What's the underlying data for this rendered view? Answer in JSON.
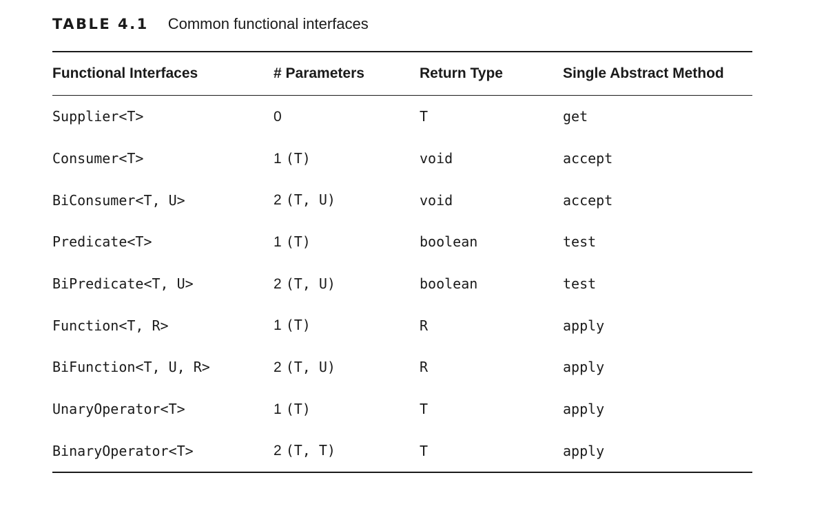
{
  "caption": {
    "label": "TABLE 4.1",
    "title": "Common functional interfaces"
  },
  "table": {
    "headers": [
      "Functional Interfaces",
      "# Parameters",
      "Return Type",
      "Single Abstract Method"
    ],
    "rows": [
      {
        "interface": "Supplier<T>",
        "param_count": "0",
        "param_types": "",
        "return_type": "T",
        "method": "get"
      },
      {
        "interface": "Consumer<T>",
        "param_count": "1",
        "param_types": "(T)",
        "return_type": "void",
        "method": "accept"
      },
      {
        "interface": "BiConsumer<T, U>",
        "param_count": "2",
        "param_types": "(T, U)",
        "return_type": "void",
        "method": "accept"
      },
      {
        "interface": "Predicate<T>",
        "param_count": "1",
        "param_types": "(T)",
        "return_type": "boolean",
        "method": "test"
      },
      {
        "interface": "BiPredicate<T, U>",
        "param_count": "2",
        "param_types": "(T, U)",
        "return_type": "boolean",
        "method": "test"
      },
      {
        "interface": "Function<T, R>",
        "param_count": "1",
        "param_types": "(T)",
        "return_type": "R",
        "method": "apply"
      },
      {
        "interface": "BiFunction<T, U, R>",
        "param_count": "2",
        "param_types": "(T, U)",
        "return_type": "R",
        "method": "apply"
      },
      {
        "interface": "UnaryOperator<T>",
        "param_count": "1",
        "param_types": "(T)",
        "return_type": "T",
        "method": "apply"
      },
      {
        "interface": "BinaryOperator<T>",
        "param_count": "2",
        "param_types": "(T, T)",
        "return_type": "T",
        "method": "apply"
      }
    ]
  }
}
